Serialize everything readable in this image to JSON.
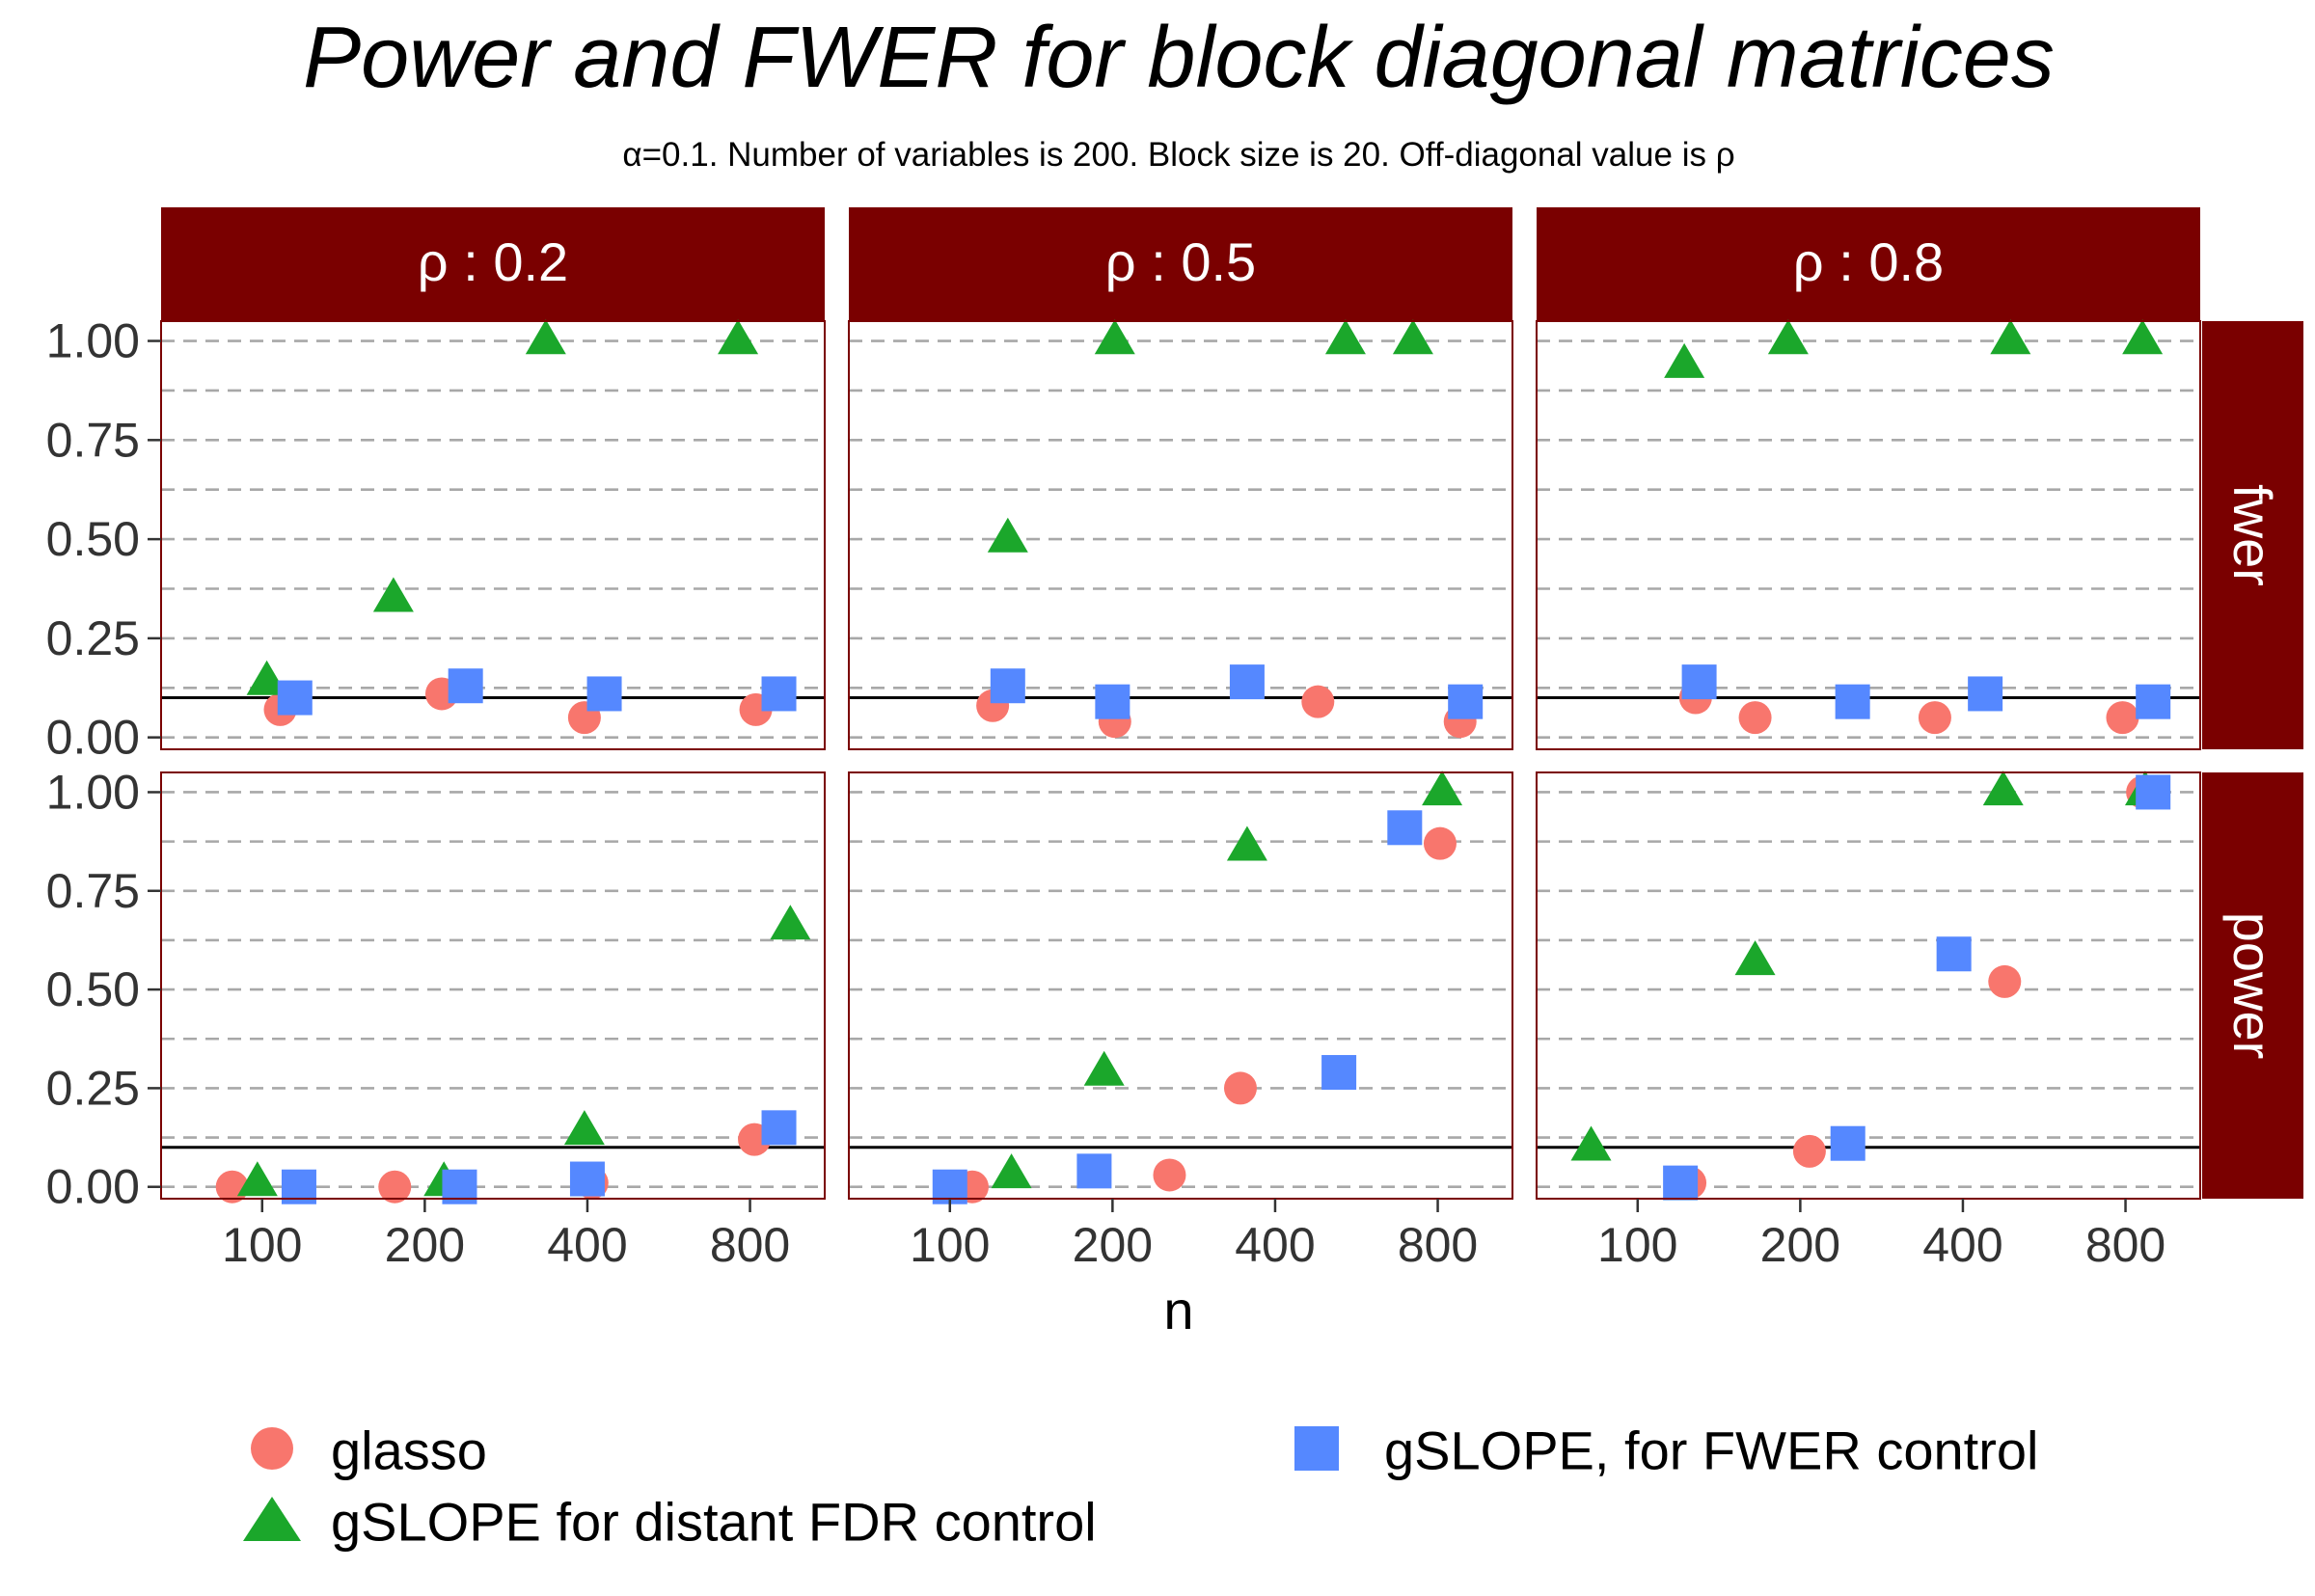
{
  "title": "Power and FWER for block diagonal matrices",
  "subtitle": "α=0.1. Number of variables is 200. Block size is 20. Off-diagonal value is ρ",
  "colors": {
    "strip_bg": "#7a0000",
    "glasso": "#F8766D",
    "gSLOPE_distant": "#1BA72B",
    "gSLOPE_fwer": "#5588FF",
    "grid": "#a8a8a8",
    "reference_line": "#000000",
    "panel_border": "#7a0000"
  },
  "legend": {
    "position": "bottom",
    "items": [
      {
        "key": "glasso",
        "label": "glasso",
        "shape": "circle"
      },
      {
        "key": "gSLOPE_distant",
        "label": "gSLOPE for distant FDR control",
        "shape": "triangle"
      },
      {
        "key": "gSLOPE_fwer",
        "label": "gSLOPE, for FWER control",
        "shape": "square"
      }
    ]
  },
  "chart_data": {
    "type": "scatter",
    "facets": {
      "columns": [
        "ρ : 0.2",
        "ρ : 0.5",
        "ρ : 0.8"
      ],
      "rows": [
        "fwer",
        "power"
      ]
    },
    "x_axis": {
      "label": "n",
      "scale": "log2",
      "ticks": [
        100,
        200,
        400,
        800
      ],
      "tick_labels": [
        "100",
        "200",
        "400",
        "800"
      ]
    },
    "y_axis": {
      "ticks": [
        0,
        0.25,
        0.5,
        0.75,
        1
      ],
      "tick_labels": [
        "0.00",
        "0.25",
        "0.50",
        "0.75",
        "1.00"
      ],
      "ylim": [
        -0.03,
        1.05
      ]
    },
    "reference_line_y": 0.1,
    "grid": "horizontal dashed",
    "panels": [
      {
        "column": 0,
        "row": 0,
        "series": [
          {
            "key": "glasso",
            "points": [
              [
                108,
                0.07
              ],
              [
                215,
                0.11
              ],
              [
                395,
                0.05
              ],
              [
                820,
                0.07
              ]
            ]
          },
          {
            "key": "gSLOPE_distant",
            "points": [
              [
                102,
                0.14
              ],
              [
                175,
                0.35
              ],
              [
                335,
                1.0
              ],
              [
                760,
                1.0
              ]
            ]
          },
          {
            "key": "gSLOPE_fwer",
            "points": [
              [
                115,
                0.1
              ],
              [
                238,
                0.13
              ],
              [
                430,
                0.11
              ],
              [
                905,
                0.11
              ]
            ]
          }
        ]
      },
      {
        "column": 1,
        "row": 0,
        "series": [
          {
            "key": "glasso",
            "points": [
              [
                120,
                0.08
              ],
              [
                202,
                0.04
              ],
              [
                480,
                0.09
              ],
              [
                880,
                0.04
              ]
            ]
          },
          {
            "key": "gSLOPE_distant",
            "points": [
              [
                128,
                0.5
              ],
              [
                202,
                1.0
              ],
              [
                540,
                1.0
              ],
              [
                720,
                1.0
              ]
            ]
          },
          {
            "key": "gSLOPE_fwer",
            "points": [
              [
                128,
                0.13
              ],
              [
                200,
                0.09
              ],
              [
                355,
                0.14
              ],
              [
                900,
                0.09
              ]
            ]
          }
        ]
      },
      {
        "column": 2,
        "row": 0,
        "series": [
          {
            "key": "glasso",
            "points": [
              [
                128,
                0.1
              ],
              [
                165,
                0.05
              ],
              [
                355,
                0.05
              ],
              [
                790,
                0.05
              ]
            ]
          },
          {
            "key": "gSLOPE_distant",
            "points": [
              [
                122,
                0.94
              ],
              [
                190,
                1.0
              ],
              [
                490,
                1.0
              ],
              [
                860,
                1.0
              ]
            ]
          },
          {
            "key": "gSLOPE_fwer",
            "points": [
              [
                130,
                0.14
              ],
              [
                250,
                0.09
              ],
              [
                440,
                0.11
              ],
              [
                900,
                0.09
              ]
            ]
          }
        ]
      },
      {
        "column": 0,
        "row": 1,
        "series": [
          {
            "key": "glasso",
            "points": [
              [
                88,
                0.0
              ],
              [
                176,
                0.0
              ],
              [
                408,
                0.01
              ],
              [
                815,
                0.12
              ]
            ]
          },
          {
            "key": "gSLOPE_distant",
            "points": [
              [
                98,
                0.01
              ],
              [
                217,
                0.01
              ],
              [
                395,
                0.14
              ],
              [
                950,
                0.66
              ]
            ]
          },
          {
            "key": "gSLOPE_fwer",
            "points": [
              [
                117,
                0.0
              ],
              [
                232,
                0.0
              ],
              [
                400,
                0.02
              ],
              [
                905,
                0.15
              ]
            ]
          }
        ]
      },
      {
        "column": 1,
        "row": 1,
        "series": [
          {
            "key": "glasso",
            "points": [
              [
                110,
                0.0
              ],
              [
                255,
                0.03
              ],
              [
                345,
                0.25
              ],
              [
                808,
                0.87
              ]
            ]
          },
          {
            "key": "gSLOPE_distant",
            "points": [
              [
                130,
                0.03
              ],
              [
                193,
                0.29
              ],
              [
                355,
                0.86
              ],
              [
                815,
                1.0
              ]
            ]
          },
          {
            "key": "gSLOPE_fwer",
            "points": [
              [
                100,
                0.0
              ],
              [
                185,
                0.04
              ],
              [
                525,
                0.29
              ],
              [
                695,
                0.91
              ]
            ]
          }
        ]
      },
      {
        "column": 2,
        "row": 1,
        "series": [
          {
            "key": "glasso",
            "points": [
              [
                125,
                0.01
              ],
              [
                208,
                0.09
              ],
              [
                478,
                0.52
              ],
              [
                860,
                1.0
              ]
            ]
          },
          {
            "key": "gSLOPE_distant",
            "points": [
              [
                82,
                0.1
              ],
              [
                165,
                0.57
              ],
              [
                475,
                1.0
              ],
              [
                870,
                1.0
              ]
            ]
          },
          {
            "key": "gSLOPE_fwer",
            "points": [
              [
                120,
                0.01
              ],
              [
                245,
                0.11
              ],
              [
                385,
                0.59
              ],
              [
                900,
                1.0
              ]
            ]
          }
        ]
      }
    ]
  }
}
